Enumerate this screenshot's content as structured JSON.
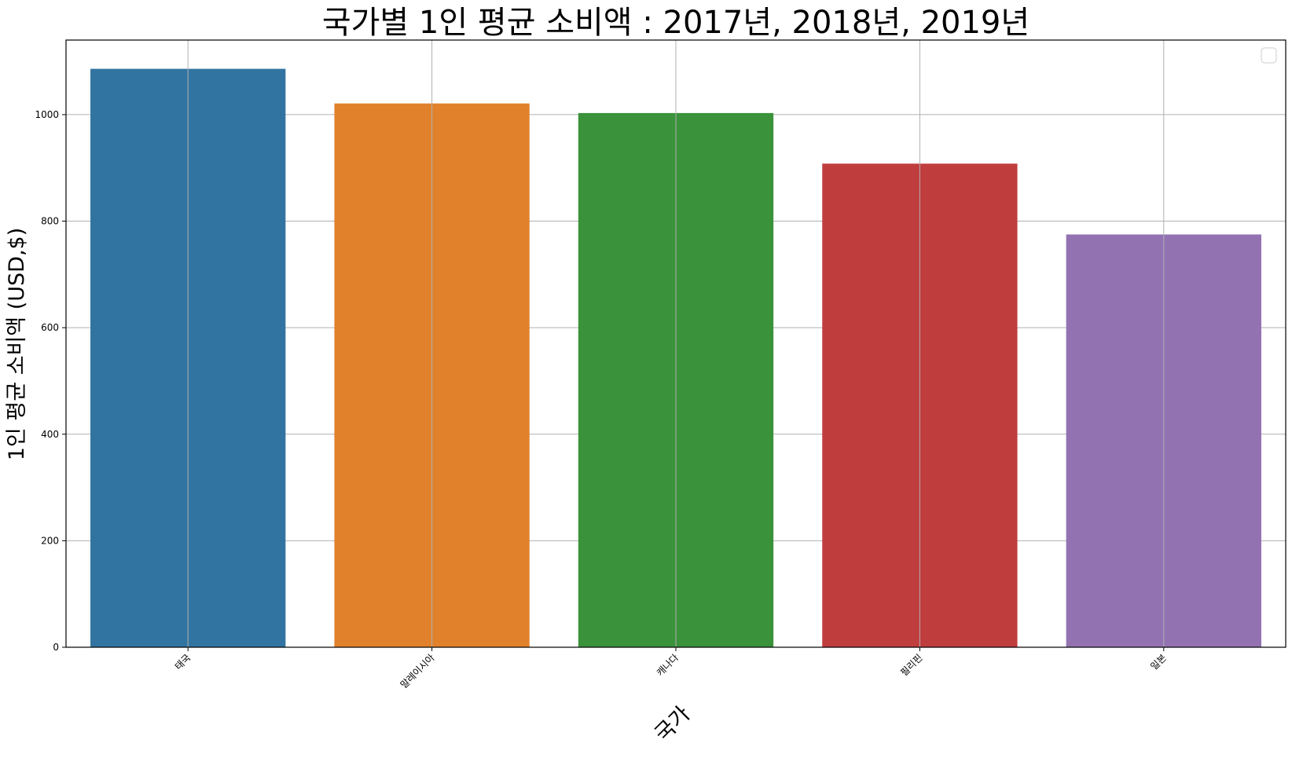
{
  "chart_data": {
    "type": "bar",
    "title": "국가별 1인 평균 소비액 : 2017년, 2018년, 2019년",
    "xlabel": "국가",
    "ylabel": "1인 평균 소비액 (USD,$)",
    "categories": [
      "태국",
      "말레이시아",
      "캐나다",
      "필리핀",
      "일본"
    ],
    "values": [
      1086,
      1021,
      1003,
      908,
      775
    ],
    "colors": [
      "#3274a1",
      "#e1812c",
      "#3a923a",
      "#c03d3e",
      "#9372b2"
    ],
    "ylim": [
      0,
      1140
    ],
    "yticks": [
      0,
      200,
      400,
      600,
      800,
      1000
    ],
    "grid": true,
    "legend": "top-right (empty)"
  }
}
